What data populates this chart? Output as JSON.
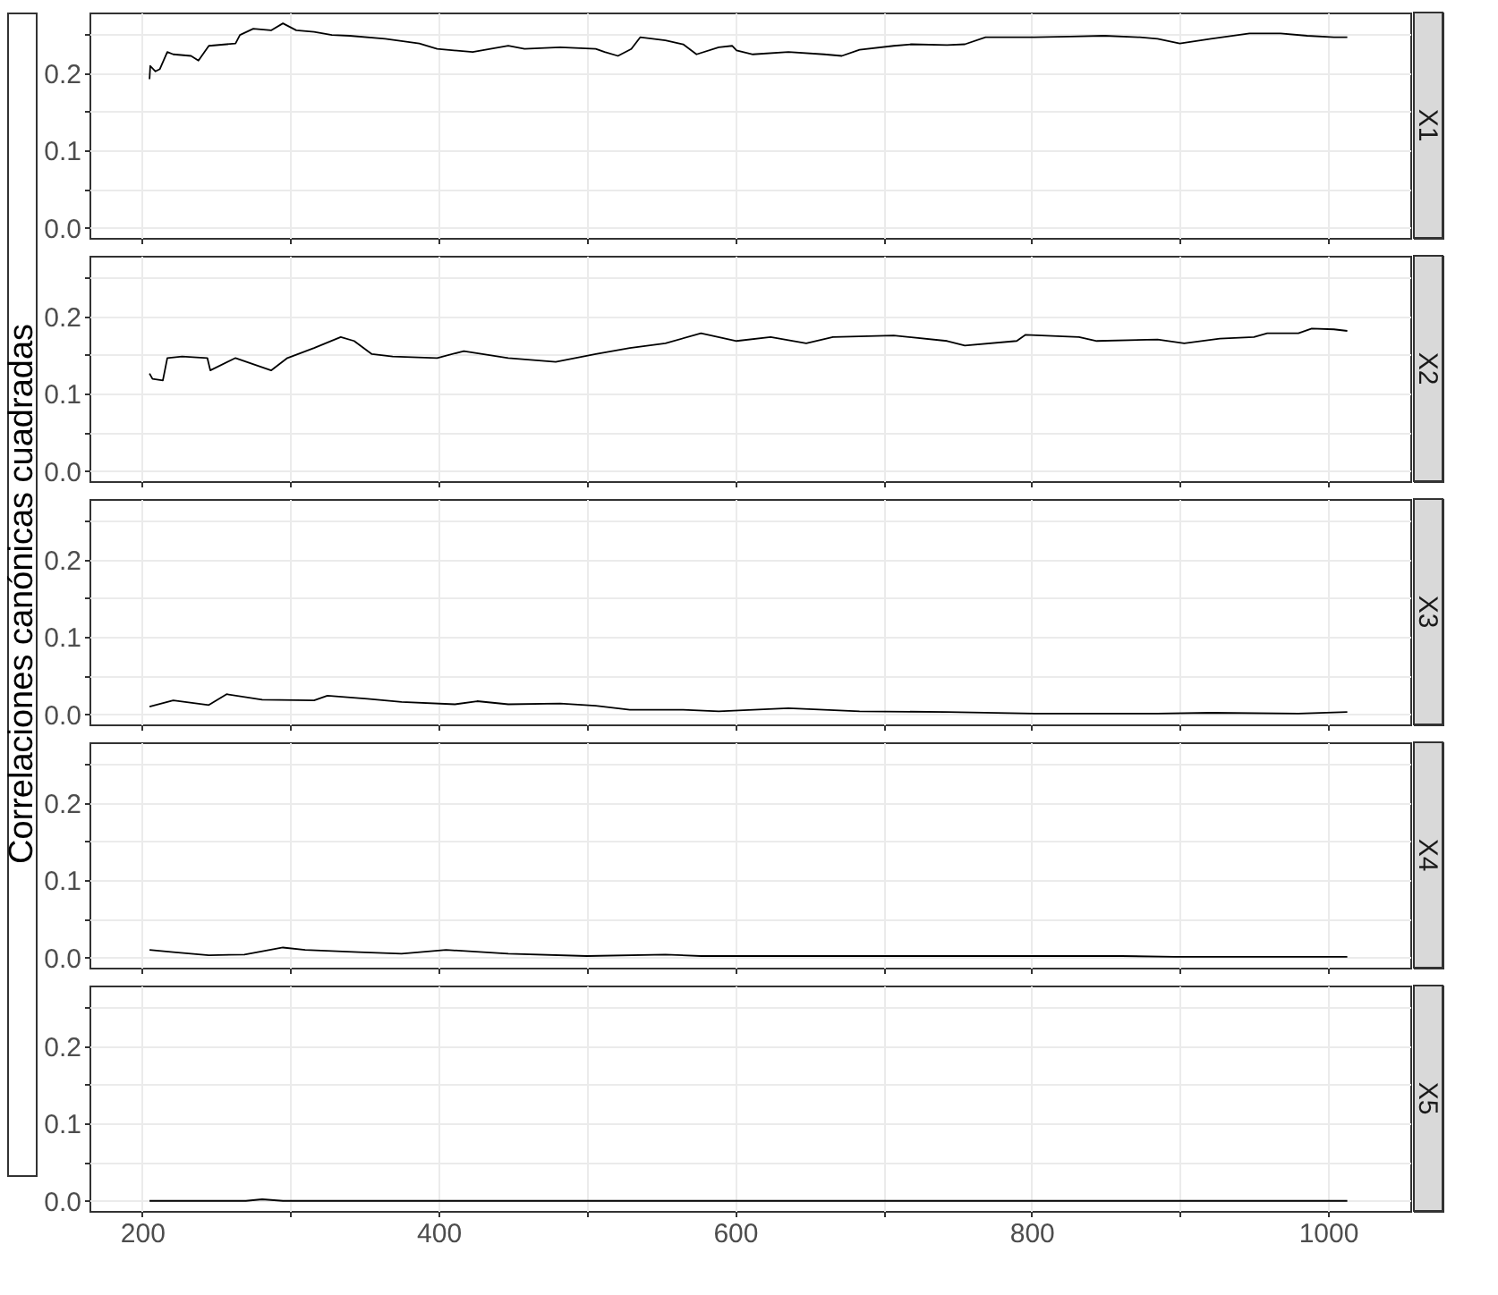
{
  "chart_data": [
    {
      "type": "line",
      "ylabel": "Correlaciones canónicas cuadradas",
      "x": [
        205,
        205.5,
        209,
        212,
        217,
        221,
        233,
        238,
        245,
        263,
        266,
        275,
        287,
        295,
        304,
        316,
        328,
        340,
        364,
        387,
        399,
        423,
        447,
        458,
        482,
        506,
        512,
        521,
        530,
        536,
        553,
        565,
        574,
        589,
        598,
        601,
        612,
        636,
        660,
        672,
        684,
        707,
        719,
        743,
        755,
        769,
        802,
        826,
        849,
        873,
        885,
        900,
        921,
        947,
        968,
        986,
        1004,
        1013
      ],
      "series": [
        {
          "name": "X1",
          "color": "#000000",
          "values": [
            0.192,
            0.209,
            0.202,
            0.205,
            0.227,
            0.224,
            0.222,
            0.216,
            0.235,
            0.238,
            0.249,
            0.257,
            0.255,
            0.264,
            0.255,
            0.253,
            0.249,
            0.248,
            0.244,
            0.238,
            0.231,
            0.227,
            0.235,
            0.231,
            0.233,
            0.231,
            0.227,
            0.222,
            0.231,
            0.246,
            0.242,
            0.237,
            0.224,
            0.233,
            0.235,
            0.229,
            0.224,
            0.227,
            0.224,
            0.222,
            0.23,
            0.235,
            0.237,
            0.236,
            0.237,
            0.246,
            0.246,
            0.247,
            0.248,
            0.246,
            0.244,
            0.238,
            0.244,
            0.251,
            0.251,
            0.248,
            0.246,
            0.246
          ]
        }
      ],
      "xlim": [
        164.5,
        1055.5
      ],
      "xticks": [
        200,
        {
          "value": 300,
          "label": null
        },
        400,
        {
          "value": 500,
          "label": null
        },
        600,
        {
          "value": 700,
          "label": null
        },
        800,
        {
          "value": 900,
          "label": null
        },
        1000
      ],
      "ylim": [
        -0.013,
        0.278
      ],
      "yticks": [
        {
          "value": 0,
          "label": "0.0"
        },
        {
          "value": 0.05,
          "label": null
        },
        {
          "value": 0.1,
          "label": "0.1"
        },
        {
          "value": 0.15,
          "label": null
        },
        {
          "value": 0.2,
          "label": "0.2"
        },
        {
          "value": 0.25,
          "label": null
        }
      ],
      "grid": true,
      "tick_labels": "y"
    },
    {
      "type": "line",
      "x": [
        205,
        207,
        214,
        217,
        227,
        244,
        246,
        263,
        287,
        298,
        316,
        334,
        343,
        355,
        369,
        399,
        417,
        447,
        479,
        506,
        529,
        553,
        577,
        601,
        624,
        648,
        666,
        707,
        743,
        755,
        790,
        796,
        832,
        844,
        885,
        903,
        927,
        950,
        959,
        980,
        989,
        1004,
        1013
      ],
      "series": [
        {
          "name": "X2",
          "color": "#000000",
          "values": [
            0.126,
            0.119,
            0.117,
            0.146,
            0.148,
            0.146,
            0.13,
            0.146,
            0.13,
            0.146,
            0.159,
            0.173,
            0.168,
            0.151,
            0.148,
            0.146,
            0.155,
            0.146,
            0.141,
            0.151,
            0.159,
            0.165,
            0.178,
            0.168,
            0.173,
            0.165,
            0.173,
            0.175,
            0.168,
            0.162,
            0.168,
            0.176,
            0.173,
            0.168,
            0.17,
            0.165,
            0.171,
            0.173,
            0.178,
            0.178,
            0.184,
            0.183,
            0.181
          ]
        }
      ],
      "xlim": [
        164.5,
        1055.5
      ],
      "xticks": [
        200,
        {
          "value": 300,
          "label": null
        },
        400,
        {
          "value": 500,
          "label": null
        },
        600,
        {
          "value": 700,
          "label": null
        },
        800,
        {
          "value": 900,
          "label": null
        },
        1000
      ],
      "ylim": [
        -0.013,
        0.278
      ],
      "yticks": [
        {
          "value": 0,
          "label": "0.0"
        },
        {
          "value": 0.05,
          "label": null
        },
        {
          "value": 0.1,
          "label": "0.1"
        },
        {
          "value": 0.15,
          "label": null
        },
        {
          "value": 0.2,
          "label": "0.2"
        },
        {
          "value": 0.25,
          "label": null
        }
      ],
      "grid": true,
      "tick_labels": "y"
    },
    {
      "type": "line",
      "x": [
        205,
        221,
        245,
        257,
        281,
        316,
        325,
        352,
        375,
        411,
        426,
        447,
        482,
        506,
        529,
        565,
        589,
        636,
        684,
        743,
        802,
        885,
        921,
        980,
        1013
      ],
      "series": [
        {
          "name": "X3",
          "color": "#000000",
          "values": [
            0.01,
            0.018,
            0.012,
            0.026,
            0.019,
            0.018,
            0.024,
            0.02,
            0.016,
            0.013,
            0.017,
            0.013,
            0.014,
            0.011,
            0.006,
            0.006,
            0.004,
            0.008,
            0.004,
            0.003,
            0.001,
            0.001,
            0.002,
            0.001,
            0.003
          ]
        }
      ],
      "xlim": [
        164.5,
        1055.5
      ],
      "xticks": [
        200,
        {
          "value": 300,
          "label": null
        },
        400,
        {
          "value": 500,
          "label": null
        },
        600,
        {
          "value": 700,
          "label": null
        },
        800,
        {
          "value": 900,
          "label": null
        },
        1000
      ],
      "ylim": [
        -0.013,
        0.278
      ],
      "yticks": [
        {
          "value": 0,
          "label": "0.0"
        },
        {
          "value": 0.05,
          "label": null
        },
        {
          "value": 0.1,
          "label": "0.1"
        },
        {
          "value": 0.15,
          "label": null
        },
        {
          "value": 0.2,
          "label": "0.2"
        },
        {
          "value": 0.25,
          "label": null
        }
      ],
      "grid": true,
      "tick_labels": "y"
    },
    {
      "type": "line",
      "x": [
        205,
        221,
        245,
        269,
        295,
        310,
        346,
        375,
        405,
        447,
        500,
        553,
        577,
        743,
        861,
        897,
        1013
      ],
      "series": [
        {
          "name": "X4",
          "color": "#000000",
          "values": [
            0.01,
            0.007,
            0.003,
            0.004,
            0.013,
            0.01,
            0.007,
            0.005,
            0.01,
            0.005,
            0.002,
            0.004,
            0.002,
            0.002,
            0.002,
            0.001,
            0.001
          ]
        }
      ],
      "xlim": [
        164.5,
        1055.5
      ],
      "xticks": [
        200,
        {
          "value": 300,
          "label": null
        },
        400,
        {
          "value": 500,
          "label": null
        },
        600,
        {
          "value": 700,
          "label": null
        },
        800,
        {
          "value": 900,
          "label": null
        },
        1000
      ],
      "ylim": [
        -0.013,
        0.278
      ],
      "yticks": [
        {
          "value": 0,
          "label": "0.0"
        },
        {
          "value": 0.05,
          "label": null
        },
        {
          "value": 0.1,
          "label": "0.1"
        },
        {
          "value": 0.15,
          "label": null
        },
        {
          "value": 0.2,
          "label": "0.2"
        },
        {
          "value": 0.25,
          "label": null
        }
      ],
      "grid": true,
      "tick_labels": "y"
    },
    {
      "type": "line",
      "x": [
        205,
        270,
        281,
        295,
        1013
      ],
      "series": [
        {
          "name": "X5",
          "color": "#000000",
          "values": [
            0,
            0,
            0.002,
            0,
            0
          ]
        }
      ],
      "xlim": [
        164.5,
        1055.5
      ],
      "xticks": [
        200,
        {
          "value": 300,
          "label": null
        },
        400,
        {
          "value": 500,
          "label": null
        },
        600,
        {
          "value": 700,
          "label": null
        },
        800,
        {
          "value": 900,
          "label": null
        },
        1000
      ],
      "ylim": [
        -0.013,
        0.278
      ],
      "yticks": [
        {
          "value": 0,
          "label": "0.0"
        },
        {
          "value": 0.05,
          "label": null
        },
        {
          "value": 0.1,
          "label": "0.1"
        },
        {
          "value": 0.15,
          "label": null
        },
        {
          "value": 0.2,
          "label": "0.2"
        },
        {
          "value": 0.25,
          "label": null
        }
      ],
      "grid": true
    }
  ]
}
